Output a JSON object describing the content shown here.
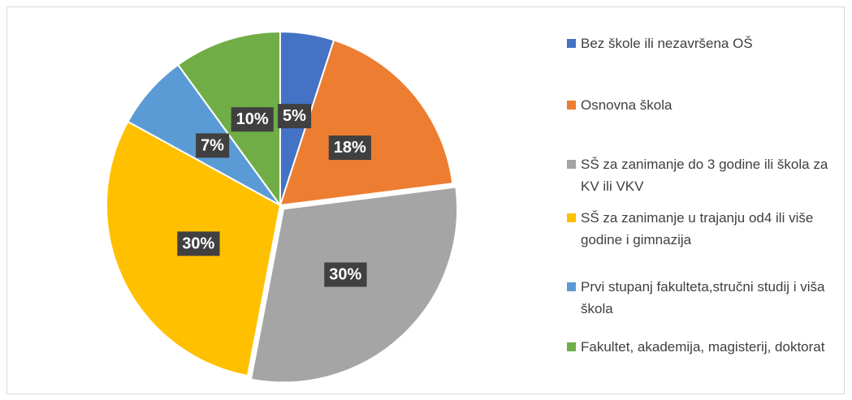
{
  "chart_data": {
    "type": "pie",
    "categories": [
      "Bez škole ili nezavršena OŠ",
      "Osnovna škola",
      "SŠ za zanimanje do 3 godine ili škola za KV ili VKV",
      "SŠ za zanimanje u trajanju od4 ili više godine i gimnazija",
      "Prvi stupanj fakulteta,stručni studij i viša škola",
      "Fakultet, akademija, magisterij, doktorat"
    ],
    "values": [
      5,
      18,
      30,
      30,
      7,
      10
    ],
    "value_labels": [
      "5%",
      "18%",
      "30%",
      "30%",
      "7%",
      "10%"
    ],
    "colors": [
      "#4472c4",
      "#ed7d31",
      "#a5a5a5",
      "#ffc000",
      "#5b9bd5",
      "#70ad47"
    ],
    "legend": "right"
  }
}
